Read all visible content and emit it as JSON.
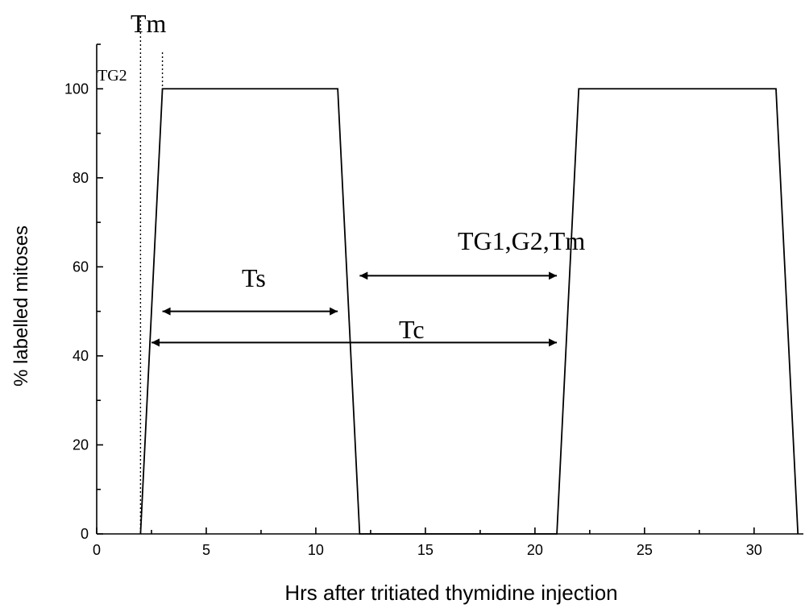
{
  "chart_data": {
    "type": "line",
    "x_label": "Hrs after tritiated thymidine injection",
    "y_label": "% labelled mitoses",
    "x": [
      2,
      3,
      11,
      12,
      21,
      22,
      31,
      32
    ],
    "values": [
      0,
      100,
      100,
      0,
      0,
      100,
      100,
      0
    ],
    "color": "#000000",
    "xlim": [
      0,
      32.25
    ],
    "ylim": [
      0,
      110
    ],
    "xticks": [
      0,
      5,
      10,
      15,
      20,
      25,
      30
    ],
    "xminorticks": [
      2.5,
      7.5,
      12.5,
      17.5,
      22.5,
      27.5
    ],
    "yticks": [
      0,
      20,
      40,
      60,
      80,
      100
    ],
    "yminorticks": [
      10,
      30,
      50,
      70,
      90,
      110
    ],
    "dotted_lines": [
      2,
      3
    ],
    "annotations": [
      {
        "text": "Tm"
      },
      {
        "text": "TG2"
      },
      {
        "text": "Ts",
        "x1": 3,
        "x2": 11,
        "y": 50
      },
      {
        "text": "Tc",
        "x1": 2.5,
        "x2": 21,
        "y": 43
      },
      {
        "text": "TG1,G2,Tm",
        "x1": 12,
        "x2": 21,
        "y": 58
      }
    ]
  }
}
